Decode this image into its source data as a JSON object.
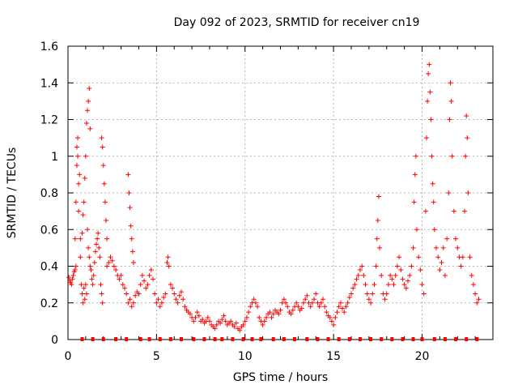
{
  "chart_data": {
    "type": "scatter",
    "title": "Day 092 of 2023, SRMTID for receiver cn19",
    "xlabel": "GPS time / hours",
    "ylabel": "SRMTID / TECUs",
    "xlim": [
      0,
      24
    ],
    "ylim": [
      0,
      1.6
    ],
    "xticks": [
      0,
      5,
      10,
      15,
      20
    ],
    "yticks": [
      0,
      0.2,
      0.4,
      0.6,
      0.8,
      1,
      1.2,
      1.4,
      1.6
    ],
    "xtick_labels": [
      "0",
      "5",
      "10",
      "15",
      "20"
    ],
    "ytick_labels": [
      "0",
      "0.2",
      "0.4",
      "0.6",
      "0.8",
      "1",
      "1.2",
      "1.4",
      "1.6"
    ],
    "grid": true,
    "marker": "+",
    "color": "#ff0000",
    "baseline_markers": {
      "y": 0,
      "x": [
        0.8,
        1.4,
        2.0,
        2.7,
        3.3,
        4.1,
        4.6,
        5.2,
        5.8,
        6.4,
        7.1,
        7.7,
        8.3,
        8.7,
        9.3,
        9.9,
        10.4,
        10.9,
        11.6,
        12.2,
        12.8,
        13.5,
        14.1,
        14.7,
        15.3,
        15.9,
        16.5,
        17.1,
        17.7,
        18.3,
        18.9,
        19.5,
        20.0,
        20.7,
        21.3,
        21.9,
        22.5,
        23.1
      ]
    },
    "series": [
      {
        "name": "SRMTID",
        "points": [
          [
            0.05,
            0.34
          ],
          [
            0.1,
            0.32
          ],
          [
            0.15,
            0.31
          ],
          [
            0.2,
            0.3
          ],
          [
            0.25,
            0.33
          ],
          [
            0.3,
            0.35
          ],
          [
            0.35,
            0.37
          ],
          [
            0.4,
            0.38
          ],
          [
            0.45,
            0.4
          ],
          [
            0.4,
            0.55
          ],
          [
            0.45,
            0.75
          ],
          [
            0.5,
            0.95
          ],
          [
            0.5,
            1.05
          ],
          [
            0.55,
            1.1
          ],
          [
            0.55,
            1.0
          ],
          [
            0.6,
            0.85
          ],
          [
            0.6,
            0.7
          ],
          [
            0.65,
            0.9
          ],
          [
            0.7,
            0.55
          ],
          [
            0.7,
            0.45
          ],
          [
            0.75,
            0.3
          ],
          [
            0.8,
            0.25
          ],
          [
            0.85,
            0.2
          ],
          [
            0.9,
            0.28
          ],
          [
            0.95,
            0.22
          ],
          [
            1.0,
            0.3
          ],
          [
            1.05,
            0.25
          ],
          [
            0.8,
            0.58
          ],
          [
            0.85,
            0.68
          ],
          [
            0.9,
            0.75
          ],
          [
            0.95,
            0.88
          ],
          [
            1.0,
            1.0
          ],
          [
            1.05,
            1.18
          ],
          [
            1.1,
            1.25
          ],
          [
            1.15,
            1.3
          ],
          [
            1.2,
            1.37
          ],
          [
            1.25,
            1.15
          ],
          [
            1.1,
            0.6
          ],
          [
            1.15,
            0.5
          ],
          [
            1.2,
            0.45
          ],
          [
            1.25,
            0.4
          ],
          [
            1.3,
            0.38
          ],
          [
            1.35,
            0.33
          ],
          [
            1.4,
            0.3
          ],
          [
            1.45,
            0.35
          ],
          [
            1.5,
            0.42
          ],
          [
            1.55,
            0.48
          ],
          [
            1.6,
            0.52
          ],
          [
            1.65,
            0.55
          ],
          [
            1.7,
            0.58
          ],
          [
            1.75,
            0.5
          ],
          [
            1.8,
            0.45
          ],
          [
            1.85,
            0.3
          ],
          [
            1.9,
            0.25
          ],
          [
            1.95,
            0.2
          ],
          [
            1.9,
            1.1
          ],
          [
            1.95,
            1.05
          ],
          [
            2.0,
            0.95
          ],
          [
            2.05,
            0.85
          ],
          [
            2.1,
            0.75
          ],
          [
            2.15,
            0.65
          ],
          [
            2.2,
            0.55
          ],
          [
            2.2,
            0.4
          ],
          [
            2.3,
            0.42
          ],
          [
            2.4,
            0.45
          ],
          [
            2.5,
            0.43
          ],
          [
            2.6,
            0.4
          ],
          [
            2.7,
            0.38
          ],
          [
            2.8,
            0.35
          ],
          [
            2.9,
            0.33
          ],
          [
            3.0,
            0.35
          ],
          [
            3.1,
            0.3
          ],
          [
            3.2,
            0.28
          ],
          [
            3.3,
            0.25
          ],
          [
            3.4,
            0.2
          ],
          [
            3.5,
            0.22
          ],
          [
            3.6,
            0.18
          ],
          [
            3.7,
            0.2
          ],
          [
            3.8,
            0.24
          ],
          [
            3.9,
            0.26
          ],
          [
            3.4,
            0.9
          ],
          [
            3.45,
            0.8
          ],
          [
            3.5,
            0.72
          ],
          [
            3.55,
            0.62
          ],
          [
            3.6,
            0.55
          ],
          [
            3.65,
            0.48
          ],
          [
            3.7,
            0.42
          ],
          [
            4.0,
            0.25
          ],
          [
            4.1,
            0.3
          ],
          [
            4.2,
            0.35
          ],
          [
            4.3,
            0.32
          ],
          [
            4.4,
            0.28
          ],
          [
            4.5,
            0.3
          ],
          [
            4.6,
            0.35
          ],
          [
            4.7,
            0.38
          ],
          [
            4.8,
            0.33
          ],
          [
            4.9,
            0.25
          ],
          [
            5.0,
            0.2
          ],
          [
            5.1,
            0.22
          ],
          [
            5.2,
            0.18
          ],
          [
            5.3,
            0.2
          ],
          [
            5.4,
            0.23
          ],
          [
            5.5,
            0.25
          ],
          [
            5.6,
            0.42
          ],
          [
            5.65,
            0.45
          ],
          [
            5.7,
            0.4
          ],
          [
            5.8,
            0.3
          ],
          [
            5.9,
            0.28
          ],
          [
            6.0,
            0.25
          ],
          [
            6.1,
            0.22
          ],
          [
            6.2,
            0.2
          ],
          [
            6.3,
            0.24
          ],
          [
            6.4,
            0.26
          ],
          [
            6.5,
            0.22
          ],
          [
            6.6,
            0.18
          ],
          [
            6.7,
            0.16
          ],
          [
            6.8,
            0.15
          ],
          [
            6.9,
            0.14
          ],
          [
            7.0,
            0.12
          ],
          [
            7.1,
            0.1
          ],
          [
            7.2,
            0.12
          ],
          [
            7.3,
            0.15
          ],
          [
            7.4,
            0.13
          ],
          [
            7.5,
            0.1
          ],
          [
            7.6,
            0.11
          ],
          [
            7.7,
            0.09
          ],
          [
            7.8,
            0.1
          ],
          [
            7.9,
            0.12
          ],
          [
            8.0,
            0.1
          ],
          [
            8.1,
            0.08
          ],
          [
            8.2,
            0.07
          ],
          [
            8.3,
            0.06
          ],
          [
            8.4,
            0.08
          ],
          [
            8.5,
            0.1
          ],
          [
            8.6,
            0.09
          ],
          [
            8.7,
            0.11
          ],
          [
            8.8,
            0.13
          ],
          [
            8.9,
            0.1
          ],
          [
            9.0,
            0.08
          ],
          [
            9.1,
            0.09
          ],
          [
            9.2,
            0.1
          ],
          [
            9.3,
            0.08
          ],
          [
            9.4,
            0.07
          ],
          [
            9.5,
            0.09
          ],
          [
            9.6,
            0.06
          ],
          [
            9.7,
            0.05
          ],
          [
            9.8,
            0.07
          ],
          [
            9.9,
            0.08
          ],
          [
            10.0,
            0.1
          ],
          [
            10.1,
            0.12
          ],
          [
            10.2,
            0.15
          ],
          [
            10.3,
            0.18
          ],
          [
            10.4,
            0.2
          ],
          [
            10.5,
            0.22
          ],
          [
            10.6,
            0.2
          ],
          [
            10.7,
            0.18
          ],
          [
            10.8,
            0.12
          ],
          [
            10.9,
            0.1
          ],
          [
            11.0,
            0.08
          ],
          [
            11.1,
            0.1
          ],
          [
            11.2,
            0.12
          ],
          [
            11.3,
            0.14
          ],
          [
            11.4,
            0.15
          ],
          [
            11.5,
            0.12
          ],
          [
            11.6,
            0.14
          ],
          [
            11.7,
            0.16
          ],
          [
            11.8,
            0.15
          ],
          [
            11.9,
            0.14
          ],
          [
            12.0,
            0.16
          ],
          [
            12.1,
            0.2
          ],
          [
            12.2,
            0.22
          ],
          [
            12.3,
            0.2
          ],
          [
            12.4,
            0.18
          ],
          [
            12.5,
            0.15
          ],
          [
            12.6,
            0.14
          ],
          [
            12.7,
            0.16
          ],
          [
            12.8,
            0.18
          ],
          [
            12.9,
            0.2
          ],
          [
            13.0,
            0.18
          ],
          [
            13.1,
            0.16
          ],
          [
            13.2,
            0.17
          ],
          [
            13.3,
            0.2
          ],
          [
            13.4,
            0.22
          ],
          [
            13.5,
            0.24
          ],
          [
            13.6,
            0.2
          ],
          [
            13.7,
            0.18
          ],
          [
            13.8,
            0.2
          ],
          [
            13.9,
            0.22
          ],
          [
            14.0,
            0.25
          ],
          [
            14.1,
            0.2
          ],
          [
            14.2,
            0.18
          ],
          [
            14.3,
            0.2
          ],
          [
            14.4,
            0.22
          ],
          [
            14.5,
            0.18
          ],
          [
            14.6,
            0.15
          ],
          [
            14.7,
            0.13
          ],
          [
            14.8,
            0.12
          ],
          [
            14.9,
            0.1
          ],
          [
            15.0,
            0.08
          ],
          [
            15.1,
            0.12
          ],
          [
            15.2,
            0.15
          ],
          [
            15.3,
            0.18
          ],
          [
            15.4,
            0.2
          ],
          [
            15.5,
            0.17
          ],
          [
            15.6,
            0.15
          ],
          [
            15.7,
            0.18
          ],
          [
            15.8,
            0.2
          ],
          [
            15.9,
            0.23
          ],
          [
            16.0,
            0.25
          ],
          [
            16.1,
            0.28
          ],
          [
            16.2,
            0.3
          ],
          [
            16.3,
            0.33
          ],
          [
            16.4,
            0.35
          ],
          [
            16.5,
            0.38
          ],
          [
            16.6,
            0.4
          ],
          [
            16.7,
            0.35
          ],
          [
            16.8,
            0.3
          ],
          [
            16.9,
            0.25
          ],
          [
            17.0,
            0.22
          ],
          [
            17.1,
            0.2
          ],
          [
            17.2,
            0.25
          ],
          [
            17.3,
            0.3
          ],
          [
            17.4,
            0.4
          ],
          [
            17.45,
            0.55
          ],
          [
            17.5,
            0.65
          ],
          [
            17.55,
            0.78
          ],
          [
            17.6,
            0.5
          ],
          [
            17.7,
            0.35
          ],
          [
            17.8,
            0.25
          ],
          [
            17.9,
            0.22
          ],
          [
            18.0,
            0.25
          ],
          [
            18.1,
            0.3
          ],
          [
            18.2,
            0.35
          ],
          [
            18.3,
            0.33
          ],
          [
            18.4,
            0.3
          ],
          [
            18.5,
            0.35
          ],
          [
            18.6,
            0.4
          ],
          [
            18.7,
            0.45
          ],
          [
            18.8,
            0.38
          ],
          [
            18.9,
            0.33
          ],
          [
            19.0,
            0.3
          ],
          [
            19.1,
            0.28
          ],
          [
            19.2,
            0.32
          ],
          [
            19.3,
            0.35
          ],
          [
            19.4,
            0.4
          ],
          [
            19.5,
            0.5
          ],
          [
            19.55,
            0.75
          ],
          [
            19.6,
            0.9
          ],
          [
            19.65,
            1.0
          ],
          [
            19.7,
            0.6
          ],
          [
            19.8,
            0.45
          ],
          [
            19.9,
            0.38
          ],
          [
            20.0,
            0.3
          ],
          [
            20.1,
            0.25
          ],
          [
            20.2,
            0.7
          ],
          [
            20.25,
            1.1
          ],
          [
            20.3,
            1.3
          ],
          [
            20.35,
            1.45
          ],
          [
            20.4,
            1.5
          ],
          [
            20.45,
            1.35
          ],
          [
            20.5,
            1.2
          ],
          [
            20.55,
            1.0
          ],
          [
            20.6,
            0.85
          ],
          [
            20.65,
            0.75
          ],
          [
            20.7,
            0.6
          ],
          [
            20.8,
            0.5
          ],
          [
            20.9,
            0.45
          ],
          [
            21.0,
            0.38
          ],
          [
            21.1,
            0.42
          ],
          [
            21.2,
            0.5
          ],
          [
            21.3,
            0.35
          ],
          [
            21.4,
            0.55
          ],
          [
            21.5,
            0.8
          ],
          [
            21.55,
            1.2
          ],
          [
            21.6,
            1.4
          ],
          [
            21.65,
            1.3
          ],
          [
            21.7,
            1.0
          ],
          [
            21.8,
            0.7
          ],
          [
            21.9,
            0.55
          ],
          [
            22.0,
            0.5
          ],
          [
            22.1,
            0.45
          ],
          [
            22.2,
            0.4
          ],
          [
            22.3,
            0.45
          ],
          [
            22.4,
            0.7
          ],
          [
            22.45,
            1.0
          ],
          [
            22.5,
            1.22
          ],
          [
            22.55,
            1.1
          ],
          [
            22.6,
            0.8
          ],
          [
            22.7,
            0.45
          ],
          [
            22.8,
            0.35
          ],
          [
            22.9,
            0.3
          ],
          [
            23.0,
            0.25
          ],
          [
            23.1,
            0.2
          ],
          [
            23.2,
            0.22
          ]
        ]
      }
    ]
  }
}
